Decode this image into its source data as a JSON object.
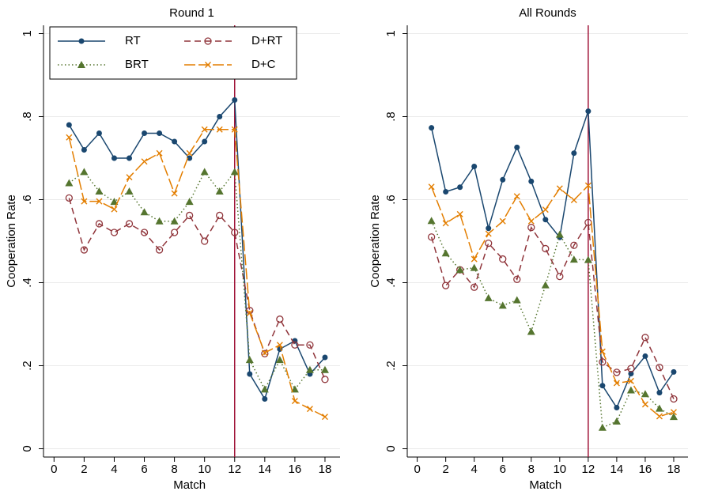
{
  "chart_data": [
    {
      "type": "line",
      "title": "Round 1",
      "xlabel": "Match",
      "ylabel": "Cooperation Rate",
      "x": [
        1,
        2,
        3,
        4,
        5,
        6,
        7,
        8,
        9,
        10,
        11,
        12,
        13,
        14,
        15,
        16,
        17,
        18
      ],
      "xlim": [
        -0.7,
        19
      ],
      "xticks": [
        0,
        2,
        4,
        6,
        8,
        10,
        12,
        14,
        16,
        18
      ],
      "ylim": [
        -0.02,
        1.02
      ],
      "yticks": [
        0,
        {
          "value": 0.2,
          "label": ".2"
        },
        {
          "value": 0.4,
          "label": ".4"
        },
        {
          "value": 0.6,
          "label": ".6"
        },
        {
          "value": 0.8,
          "label": ".8"
        },
        1
      ],
      "grid": true,
      "vline": 12,
      "vline_color": "#a0163a",
      "legend": "top-left",
      "series": [
        {
          "name": "RT",
          "color": "#1a476f",
          "dash": "solid",
          "marker": "dot",
          "values": [
            0.78,
            0.72,
            0.76,
            0.7,
            0.7,
            0.76,
            0.76,
            0.74,
            0.7,
            0.74,
            0.8,
            0.84,
            0.18,
            0.12,
            0.24,
            0.26,
            0.18,
            0.22
          ]
        },
        {
          "name": "D+RT",
          "color": "#90353b",
          "dash": "dash",
          "marker": "ring",
          "values": [
            0.604,
            0.479,
            0.542,
            0.521,
            0.542,
            0.521,
            0.479,
            0.521,
            0.562,
            0.5,
            0.562,
            0.521,
            0.333,
            0.229,
            0.312,
            0.25,
            0.25,
            0.167
          ]
        },
        {
          "name": "BRT",
          "color": "#55752f",
          "dash": "dot",
          "marker": "triangle",
          "values": [
            0.64,
            0.667,
            0.62,
            0.595,
            0.62,
            0.57,
            0.548,
            0.548,
            0.595,
            0.667,
            0.62,
            0.667,
            0.214,
            0.143,
            0.214,
            0.143,
            0.19,
            0.19
          ]
        },
        {
          "name": "D+C",
          "color": "#e37e00",
          "dash": "longdash",
          "marker": "cross",
          "values": [
            0.75,
            0.596,
            0.596,
            0.577,
            0.654,
            0.692,
            0.712,
            0.615,
            0.712,
            0.769,
            0.769,
            0.769,
            0.327,
            0.231,
            0.25,
            0.115,
            0.096,
            0.077
          ]
        }
      ]
    },
    {
      "type": "line",
      "title": "All Rounds",
      "xlabel": "Match",
      "ylabel": "Cooperation Rate",
      "x": [
        1,
        2,
        3,
        4,
        5,
        6,
        7,
        8,
        9,
        10,
        11,
        12,
        13,
        14,
        15,
        16,
        17,
        18
      ],
      "xlim": [
        -0.7,
        19
      ],
      "xticks": [
        0,
        2,
        4,
        6,
        8,
        10,
        12,
        14,
        16,
        18
      ],
      "ylim": [
        -0.02,
        1.02
      ],
      "yticks": [
        0,
        {
          "value": 0.2,
          "label": ".2"
        },
        {
          "value": 0.4,
          "label": ".4"
        },
        {
          "value": 0.6,
          "label": ".6"
        },
        {
          "value": 0.8,
          "label": ".8"
        },
        1
      ],
      "grid": true,
      "vline": 12,
      "vline_color": "#a0163a",
      "series": [
        {
          "color": "#1a476f",
          "dash": "solid",
          "marker": "dot",
          "values": [
            0.773,
            0.619,
            0.63,
            0.68,
            0.531,
            0.648,
            0.726,
            0.644,
            0.552,
            0.509,
            0.712,
            0.813,
            0.152,
            0.099,
            0.181,
            0.223,
            0.135,
            0.185
          ]
        },
        {
          "color": "#90353b",
          "dash": "dash",
          "marker": "ring",
          "values": [
            0.51,
            0.393,
            0.431,
            0.389,
            0.495,
            0.457,
            0.408,
            0.533,
            0.482,
            0.415,
            0.49,
            0.545,
            0.209,
            0.184,
            0.193,
            0.268,
            0.196,
            0.12
          ]
        },
        {
          "color": "#55752f",
          "dash": "dot",
          "marker": "triangle",
          "values": [
            0.549,
            0.471,
            0.431,
            0.436,
            0.363,
            0.345,
            0.358,
            0.282,
            0.394,
            0.516,
            0.456,
            0.455,
            0.051,
            0.066,
            0.141,
            0.132,
            0.097,
            0.077
          ]
        },
        {
          "color": "#e37e00",
          "dash": "longdash",
          "marker": "cross",
          "values": [
            0.631,
            0.543,
            0.565,
            0.457,
            0.518,
            0.548,
            0.608,
            0.548,
            0.576,
            0.627,
            0.599,
            0.634,
            0.234,
            0.158,
            0.163,
            0.107,
            0.078,
            0.088
          ]
        }
      ]
    }
  ]
}
